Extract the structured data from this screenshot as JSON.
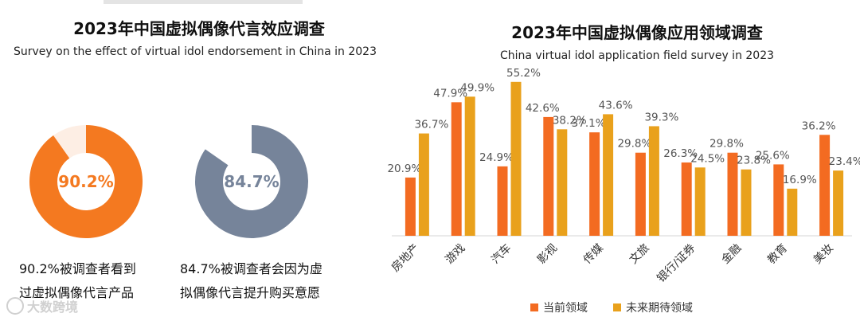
{
  "left": {
    "title": "2023年中国虚拟偶像代言效应调查",
    "subtitle": "Survey on the effect of virtual idol endorsement in China in 2023",
    "donuts": [
      {
        "value": 90.2,
        "label": "90.2%",
        "color": "#F47920",
        "track": "#FDEEE4",
        "caption_line1": "90.2%被调查者看到",
        "caption_line2": "过虚拟偶像代言产品"
      },
      {
        "value": 84.7,
        "label": "84.7%",
        "color": "#76849A",
        "track": "#FFFFFF",
        "caption_line1": "84.7%被调查者会因为虚",
        "caption_line2": "拟偶像代言提升购买意愿"
      }
    ]
  },
  "right": {
    "title": "2023年中国虚拟偶像应用领域调查",
    "subtitle": "China virtual idol application field survey in 2023"
  },
  "watermark": "大数跨境",
  "chart_data": {
    "type": "bar",
    "title": "2023年中国虚拟偶像应用领域调查",
    "subtitle": "China virtual idol application field survey in 2023",
    "categories": [
      "房地产",
      "游戏",
      "汽车",
      "影视",
      "传媒",
      "文旅",
      "银行/证券",
      "金融",
      "教育",
      "美妆"
    ],
    "series": [
      {
        "name": "当前领域",
        "color": "#F36B21",
        "values": [
          20.9,
          47.9,
          24.9,
          42.6,
          37.1,
          29.8,
          26.3,
          29.8,
          25.6,
          36.2
        ],
        "labels": [
          "20.9%",
          "47.9%",
          "24.9%",
          "42.6%",
          "37.1%",
          "29.8%",
          "26.3%",
          "29.8%",
          "25.6%",
          "36.2%"
        ]
      },
      {
        "name": "未来期待领域",
        "color": "#E9A11C",
        "values": [
          36.7,
          49.9,
          55.2,
          38.2,
          43.6,
          39.3,
          24.5,
          23.8,
          16.9,
          23.4
        ],
        "labels": [
          "36.7%",
          "49.9%",
          "55.2%",
          "38.2%",
          "43.6%",
          "39.3%",
          "24.5%",
          "23.8%",
          "16.9%",
          "23.4%"
        ]
      }
    ],
    "ylim": [
      0,
      60
    ],
    "legend": "bottom",
    "grid": false,
    "xlabel": "",
    "ylabel": ""
  }
}
